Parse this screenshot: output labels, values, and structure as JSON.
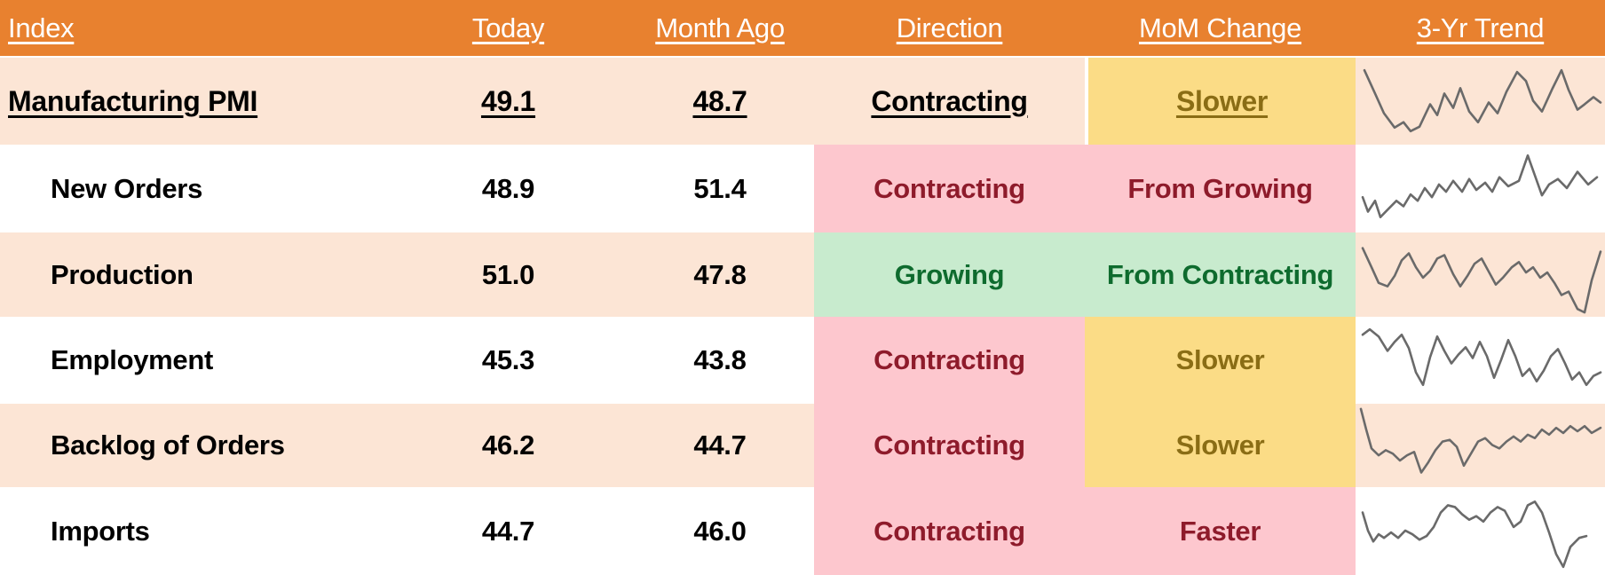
{
  "table": {
    "columns": [
      {
        "label": "Index"
      },
      {
        "label": "Today"
      },
      {
        "label": "Month Ago"
      },
      {
        "label": "Direction"
      },
      {
        "label": "MoM Change"
      },
      {
        "label": "3-Yr Trend"
      }
    ],
    "rows": [
      {
        "index": "Manufacturing PMI",
        "today": "49.1",
        "month_ago": "48.7",
        "direction": "Contracting",
        "mom_change": "Slower",
        "trend_points": [
          [
            10,
            14
          ],
          [
            22,
            40
          ],
          [
            32,
            62
          ],
          [
            44,
            78
          ],
          [
            54,
            72
          ],
          [
            62,
            82
          ],
          [
            72,
            77
          ],
          [
            84,
            52
          ],
          [
            92,
            64
          ],
          [
            100,
            40
          ],
          [
            110,
            56
          ],
          [
            118,
            34
          ],
          [
            128,
            60
          ],
          [
            138,
            72
          ],
          [
            150,
            50
          ],
          [
            160,
            62
          ],
          [
            170,
            38
          ],
          [
            182,
            16
          ],
          [
            192,
            26
          ],
          [
            200,
            48
          ],
          [
            210,
            60
          ],
          [
            222,
            34
          ],
          [
            232,
            14
          ],
          [
            240,
            36
          ],
          [
            250,
            58
          ],
          [
            258,
            52
          ],
          [
            268,
            44
          ],
          [
            276,
            50
          ]
        ]
      },
      {
        "index": "New Orders",
        "today": "48.9",
        "month_ago": "51.4",
        "direction": "Contracting",
        "mom_change": "From Growing",
        "trend_points": [
          [
            8,
            58
          ],
          [
            14,
            74
          ],
          [
            22,
            62
          ],
          [
            28,
            80
          ],
          [
            36,
            72
          ],
          [
            46,
            62
          ],
          [
            54,
            68
          ],
          [
            62,
            55
          ],
          [
            70,
            62
          ],
          [
            78,
            48
          ],
          [
            86,
            58
          ],
          [
            94,
            44
          ],
          [
            102,
            52
          ],
          [
            110,
            40
          ],
          [
            120,
            52
          ],
          [
            128,
            38
          ],
          [
            136,
            50
          ],
          [
            146,
            42
          ],
          [
            154,
            52
          ],
          [
            162,
            36
          ],
          [
            172,
            46
          ],
          [
            184,
            40
          ],
          [
            194,
            12
          ],
          [
            202,
            34
          ],
          [
            210,
            56
          ],
          [
            218,
            44
          ],
          [
            228,
            38
          ],
          [
            238,
            48
          ],
          [
            250,
            30
          ],
          [
            262,
            44
          ],
          [
            272,
            36
          ]
        ]
      },
      {
        "index": "Production",
        "today": "51.0",
        "month_ago": "47.8",
        "direction": "Growing",
        "mom_change": "From Contracting",
        "trend_points": [
          [
            8,
            18
          ],
          [
            18,
            40
          ],
          [
            26,
            58
          ],
          [
            36,
            62
          ],
          [
            44,
            50
          ],
          [
            52,
            32
          ],
          [
            60,
            24
          ],
          [
            68,
            40
          ],
          [
            76,
            52
          ],
          [
            84,
            44
          ],
          [
            92,
            30
          ],
          [
            100,
            26
          ],
          [
            110,
            48
          ],
          [
            118,
            62
          ],
          [
            126,
            50
          ],
          [
            134,
            36
          ],
          [
            142,
            30
          ],
          [
            150,
            45
          ],
          [
            158,
            60
          ],
          [
            166,
            52
          ],
          [
            176,
            40
          ],
          [
            184,
            34
          ],
          [
            192,
            46
          ],
          [
            200,
            40
          ],
          [
            208,
            52
          ],
          [
            216,
            46
          ],
          [
            224,
            58
          ],
          [
            232,
            72
          ],
          [
            240,
            68
          ],
          [
            250,
            88
          ],
          [
            258,
            92
          ],
          [
            266,
            55
          ],
          [
            276,
            22
          ]
        ]
      },
      {
        "index": "Employment",
        "today": "45.3",
        "month_ago": "43.8",
        "direction": "Contracting",
        "mom_change": "Slower",
        "trend_points": [
          [
            8,
            20
          ],
          [
            16,
            14
          ],
          [
            26,
            22
          ],
          [
            36,
            38
          ],
          [
            44,
            28
          ],
          [
            52,
            20
          ],
          [
            60,
            35
          ],
          [
            68,
            62
          ],
          [
            76,
            76
          ],
          [
            84,
            45
          ],
          [
            92,
            22
          ],
          [
            100,
            38
          ],
          [
            108,
            52
          ],
          [
            116,
            42
          ],
          [
            124,
            34
          ],
          [
            132,
            46
          ],
          [
            140,
            28
          ],
          [
            148,
            44
          ],
          [
            156,
            68
          ],
          [
            164,
            48
          ],
          [
            172,
            26
          ],
          [
            180,
            44
          ],
          [
            188,
            66
          ],
          [
            196,
            58
          ],
          [
            204,
            72
          ],
          [
            212,
            60
          ],
          [
            220,
            44
          ],
          [
            228,
            36
          ],
          [
            236,
            52
          ],
          [
            244,
            70
          ],
          [
            252,
            62
          ],
          [
            260,
            76
          ],
          [
            268,
            66
          ],
          [
            276,
            62
          ]
        ]
      },
      {
        "index": "Backlog of Orders",
        "today": "46.2",
        "month_ago": "44.7",
        "direction": "Contracting",
        "mom_change": "Slower",
        "trend_points": [
          [
            6,
            6
          ],
          [
            12,
            30
          ],
          [
            18,
            52
          ],
          [
            26,
            60
          ],
          [
            34,
            54
          ],
          [
            42,
            58
          ],
          [
            50,
            66
          ],
          [
            58,
            60
          ],
          [
            66,
            56
          ],
          [
            74,
            80
          ],
          [
            82,
            68
          ],
          [
            90,
            54
          ],
          [
            98,
            44
          ],
          [
            106,
            42
          ],
          [
            114,
            50
          ],
          [
            122,
            72
          ],
          [
            130,
            58
          ],
          [
            138,
            44
          ],
          [
            146,
            40
          ],
          [
            154,
            48
          ],
          [
            162,
            52
          ],
          [
            170,
            44
          ],
          [
            178,
            38
          ],
          [
            186,
            44
          ],
          [
            194,
            36
          ],
          [
            202,
            40
          ],
          [
            210,
            30
          ],
          [
            218,
            36
          ],
          [
            226,
            28
          ],
          [
            234,
            34
          ],
          [
            242,
            26
          ],
          [
            250,
            32
          ],
          [
            258,
            26
          ],
          [
            266,
            34
          ],
          [
            276,
            28
          ]
        ]
      },
      {
        "index": "Imports",
        "today": "44.7",
        "month_ago": "46.0",
        "direction": "Contracting",
        "mom_change": "Faster",
        "trend_points": [
          [
            8,
            28
          ],
          [
            14,
            48
          ],
          [
            20,
            60
          ],
          [
            26,
            52
          ],
          [
            32,
            56
          ],
          [
            40,
            50
          ],
          [
            48,
            56
          ],
          [
            56,
            48
          ],
          [
            64,
            52
          ],
          [
            72,
            58
          ],
          [
            80,
            54
          ],
          [
            88,
            44
          ],
          [
            96,
            28
          ],
          [
            104,
            20
          ],
          [
            112,
            22
          ],
          [
            120,
            30
          ],
          [
            128,
            36
          ],
          [
            136,
            32
          ],
          [
            144,
            38
          ],
          [
            152,
            28
          ],
          [
            160,
            22
          ],
          [
            168,
            26
          ],
          [
            178,
            44
          ],
          [
            186,
            38
          ],
          [
            194,
            20
          ],
          [
            202,
            16
          ],
          [
            210,
            28
          ],
          [
            218,
            50
          ],
          [
            226,
            74
          ],
          [
            234,
            88
          ],
          [
            242,
            66
          ],
          [
            252,
            56
          ],
          [
            260,
            54
          ]
        ]
      }
    ]
  },
  "colors": {
    "header_bg": "#E8812F",
    "row_peach": "#FCE5D5",
    "pink_bg": "#FDC7CE",
    "pink_text": "#8E1B2B",
    "green_bg": "#C8EBCE",
    "green_text": "#0E6B2E",
    "yellow_bg": "#FBDC86",
    "yellow_text": "#8A6D15",
    "sparkline": "#6A6A6A"
  },
  "chart_data": {
    "type": "table",
    "title": "Manufacturing PMI and sub-indices",
    "columns": [
      "Index",
      "Today",
      "Month Ago",
      "Direction",
      "MoM Change",
      "3-Yr Trend"
    ],
    "rows": [
      {
        "index": "Manufacturing PMI",
        "today": 49.1,
        "month_ago": 48.7,
        "direction": "Contracting",
        "mom_change": "Slower"
      },
      {
        "index": "New Orders",
        "today": 48.9,
        "month_ago": 51.4,
        "direction": "Contracting",
        "mom_change": "From Growing"
      },
      {
        "index": "Production",
        "today": 51.0,
        "month_ago": 47.8,
        "direction": "Growing",
        "mom_change": "From Contracting"
      },
      {
        "index": "Employment",
        "today": 45.3,
        "month_ago": 43.8,
        "direction": "Contracting",
        "mom_change": "Slower"
      },
      {
        "index": "Backlog of Orders",
        "today": 46.2,
        "month_ago": 44.7,
        "direction": "Contracting",
        "mom_change": "Slower"
      },
      {
        "index": "Imports",
        "today": 44.7,
        "month_ago": 46.0,
        "direction": "Contracting",
        "mom_change": "Faster"
      }
    ],
    "notes": "3-Yr Trend column shows unlabeled gray sparklines per row"
  }
}
